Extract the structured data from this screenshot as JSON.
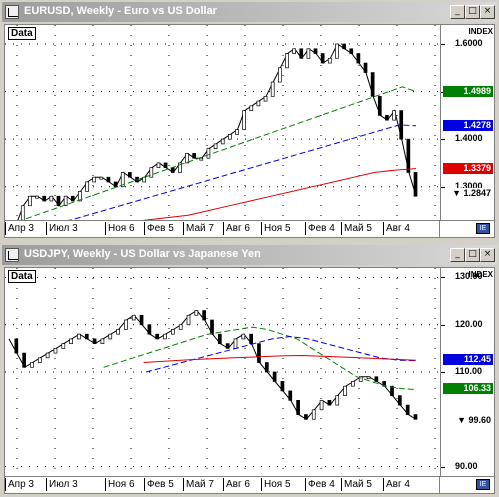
{
  "windows": [
    {
      "id": "eurusd",
      "title": "EURUSD, Weekly - Euro vs US Dollar",
      "buttons": {
        "minimize": "_",
        "maximize": "□",
        "close": "×"
      },
      "data_label": "Data",
      "index_label": "INDEX",
      "price_ticks": [
        "1.6000",
        "1.5000",
        "1.4000",
        "1.3000"
      ],
      "price_range": [
        1.23,
        1.64
      ],
      "badges": [
        {
          "text": "1.4989",
          "value": 1.4989,
          "color": "#008000"
        },
        {
          "text": "1.4278",
          "value": 1.4278,
          "color": "#0000e0"
        },
        {
          "text": "1.3379",
          "value": 1.3379,
          "color": "#e00000"
        },
        {
          "text": "1.2847",
          "value": 1.2847,
          "color": "#000000",
          "arrow": true
        }
      ],
      "x_labels": [
        "Апр 3",
        "Июл 3",
        "Ноя 6",
        "Фев 5",
        "Май 7",
        "Авг 6",
        "Ноя 5",
        "Фев 4",
        "Май 5",
        "Авг 4"
      ],
      "chart_data": {
        "type": "line",
        "series": [
          {
            "values": [
              1.21,
              1.22,
              1.26,
              1.28,
              1.28,
              1.27,
              1.28,
              1.26,
              1.28,
              1.27,
              1.29,
              1.31,
              1.32,
              1.32,
              1.31,
              1.3,
              1.33,
              1.32,
              1.31,
              1.32,
              1.34,
              1.35,
              1.34,
              1.33,
              1.35,
              1.37,
              1.36,
              1.36,
              1.38,
              1.39,
              1.4,
              1.41,
              1.42,
              1.46,
              1.47,
              1.48,
              1.49,
              1.52,
              1.55,
              1.58,
              1.59,
              1.57,
              1.59,
              1.58,
              1.56,
              1.57,
              1.6,
              1.59,
              1.58,
              1.56,
              1.54,
              1.49,
              1.45,
              1.44,
              1.46,
              1.4,
              1.33,
              1.28
            ]
          },
          {
            "values": [
              1.22,
              1.23,
              1.24,
              1.25,
              1.26,
              1.27,
              1.28,
              1.29,
              1.3,
              1.31,
              1.32,
              1.33,
              1.34,
              1.35,
              1.36,
              1.37,
              1.38,
              1.39,
              1.4,
              1.41,
              1.42,
              1.43,
              1.44,
              1.45,
              1.46,
              1.47,
              1.48,
              1.49,
              1.5,
              1.51,
              1.5
            ]
          },
          {
            "values": [
              1.21,
              1.22,
              1.225,
              1.23,
              1.24,
              1.25,
              1.26,
              1.27,
              1.28,
              1.29,
              1.3,
              1.31,
              1.32,
              1.33,
              1.34,
              1.35,
              1.36,
              1.37,
              1.38,
              1.39,
              1.4,
              1.41,
              1.42,
              1.43,
              1.428
            ]
          },
          {
            "values": [
              1.2,
              1.205,
              1.21,
              1.215,
              1.22,
              1.225,
              1.23,
              1.235,
              1.24,
              1.25,
              1.26,
              1.27,
              1.28,
              1.29,
              1.3,
              1.31,
              1.32,
              1.33,
              1.335,
              1.338
            ]
          }
        ]
      }
    },
    {
      "id": "usdjpy",
      "title": "USDJPY, Weekly - US Dollar vs Japanese Yen",
      "buttons": {
        "minimize": "_",
        "maximize": "□",
        "close": "×"
      },
      "data_label": "Data",
      "index_label": "INDEX",
      "price_ticks": [
        "130.00",
        "120.00",
        "110.00",
        "90.00"
      ],
      "price_range": [
        88,
        132
      ],
      "badges": [
        {
          "text": "112.45",
          "value": 112.45,
          "color": "#0000e0"
        },
        {
          "text": "106.33",
          "value": 106.33,
          "color": "#008000"
        },
        {
          "text": "99.60",
          "value": 99.6,
          "color": "#000000",
          "arrow": true
        }
      ],
      "x_labels": [
        "Апр 3",
        "Июл 3",
        "Ноя 6",
        "Фев 5",
        "Май 7",
        "Авг 6",
        "Ноя 5",
        "Фев 4",
        "Май 5",
        "Авг 4"
      ],
      "chart_data": {
        "type": "line",
        "series": [
          {
            "values": [
              117,
              114,
              111,
              112,
              113,
              114,
              115,
              116,
              117,
              118,
              117,
              116,
              117,
              118,
              119,
              121,
              122,
              120,
              118,
              117,
              118,
              119,
              120,
              122,
              123,
              121,
              118,
              116,
              115,
              117,
              118,
              116,
              112,
              110,
              108,
              106,
              104,
              101,
              100,
              102,
              104,
              103,
              105,
              107,
              108,
              109,
              109,
              108,
              107,
              105,
              103,
              101,
              100
            ]
          },
          {
            "values": [
              111,
              112,
              113,
              114,
              115,
              116,
              117,
              118,
              118.5,
              119,
              119.5,
              119,
              118,
              117,
              115,
              113,
              111,
              109,
              108,
              107,
              106.5,
              106.3
            ]
          },
          {
            "values": [
              110,
              111,
              112,
              113,
              114,
              115,
              116,
              117,
              117.5,
              117,
              116,
              115,
              114,
              113,
              112.5,
              112.4
            ]
          },
          {
            "values": [
              112,
              112.3,
              112.6,
              112.8,
              113,
              113.2,
              113.4,
              113.5,
              113.3,
              113.1,
              112.9,
              112.7,
              112.5
            ]
          }
        ]
      }
    }
  ]
}
